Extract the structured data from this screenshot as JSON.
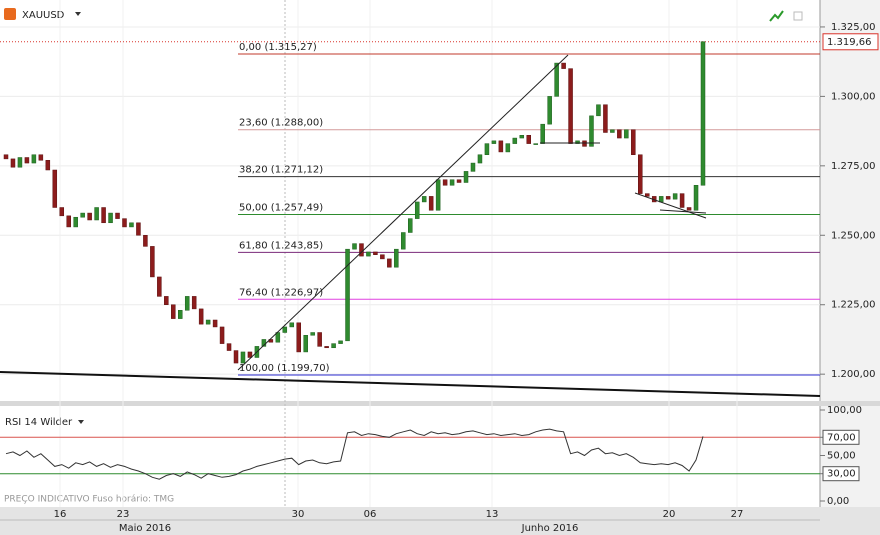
{
  "chart_data": [
    {
      "type": "candlestick",
      "title": "XAUUSD",
      "up_color": "#2f8a2f",
      "down_color": "#8c1c1c",
      "ylim": [
        1.1907,
        1.3347
      ],
      "yticks": [
        {
          "value": 1.325,
          "label": "1.325,00"
        },
        {
          "value": 1.3,
          "label": "1.300,00"
        },
        {
          "value": 1.275,
          "label": "1.275,00"
        },
        {
          "value": 1.25,
          "label": "1.250,00"
        },
        {
          "value": 1.225,
          "label": "1.225,00"
        },
        {
          "value": 1.2,
          "label": "1.200,00"
        }
      ],
      "last_price": {
        "value": 1.31966,
        "label": "1.319,66",
        "color": "#d9342b"
      },
      "fib_levels": [
        {
          "label": "0,00 (1.315,27)",
          "value": 1.31527,
          "color": "#c0392b"
        },
        {
          "label": "23,60 (1.288,00)",
          "value": 1.288,
          "color": "#d49a9a"
        },
        {
          "label": "38,20 (1.271,12)",
          "value": 1.27112,
          "color": "#333333"
        },
        {
          "label": "50,00 (1.257,49)",
          "value": 1.25749,
          "color": "#2e8b2e"
        },
        {
          "label": "61,80 (1.243,85)",
          "value": 1.24385,
          "color": "#7a2a7a"
        },
        {
          "label": "76,40 (1.226,97)",
          "value": 1.22697,
          "color": "#e040e0"
        },
        {
          "label": "100,00 (1.199,70)",
          "value": 1.1997,
          "color": "#2b2bd0"
        }
      ],
      "x_labels": [
        "16",
        "23",
        "30",
        "06",
        "13",
        "20",
        "27"
      ],
      "months": [
        "Maio 2016",
        "Junho 2016"
      ],
      "open": [
        1.279,
        1.2775,
        1.2745,
        1.278,
        1.276,
        1.279,
        1.277,
        1.2735,
        1.26,
        1.257,
        1.253,
        1.2565,
        1.258,
        1.2555,
        1.26,
        1.2545,
        1.258,
        1.256,
        1.253,
        1.2545,
        1.25,
        1.246,
        1.235,
        1.228,
        1.225,
        1.22,
        1.223,
        1.228,
        1.2235,
        1.218,
        1.2195,
        1.217,
        1.211,
        1.2085,
        1.204,
        1.208,
        1.206,
        1.21,
        1.2125,
        1.2115,
        1.215,
        1.217,
        1.2185,
        1.208,
        1.214,
        1.215,
        1.21,
        1.2095,
        1.211,
        1.212,
        1.245,
        1.247,
        1.2425,
        1.244,
        1.243,
        1.2415,
        1.2385,
        1.245,
        1.251,
        1.256,
        1.262,
        1.264,
        1.259,
        1.27,
        1.268,
        1.27,
        1.269,
        1.273,
        1.276,
        1.279,
        1.283,
        1.284,
        1.28,
        1.283,
        1.285,
        1.286,
        1.283,
        1.283,
        1.29,
        1.3,
        1.312,
        1.31,
        1.283,
        1.284,
        1.282,
        1.293,
        1.297,
        1.287,
        1.288,
        1.285,
        1.288,
        1.279,
        1.265,
        1.264,
        1.262,
        1.264,
        1.263,
        1.265,
        1.26,
        1.259,
        1.268
      ],
      "close": [
        1.2775,
        1.2745,
        1.278,
        1.276,
        1.279,
        1.277,
        1.2735,
        1.26,
        1.257,
        1.253,
        1.2565,
        1.258,
        1.2555,
        1.26,
        1.2545,
        1.258,
        1.256,
        1.253,
        1.2545,
        1.25,
        1.246,
        1.235,
        1.228,
        1.225,
        1.22,
        1.223,
        1.228,
        1.2235,
        1.218,
        1.2195,
        1.217,
        1.211,
        1.2085,
        1.204,
        1.208,
        1.206,
        1.21,
        1.2125,
        1.2115,
        1.215,
        1.217,
        1.2185,
        1.208,
        1.214,
        1.215,
        1.21,
        1.2095,
        1.211,
        1.212,
        1.245,
        1.247,
        1.2425,
        1.244,
        1.243,
        1.2415,
        1.2385,
        1.245,
        1.251,
        1.256,
        1.262,
        1.264,
        1.259,
        1.27,
        1.268,
        1.27,
        1.269,
        1.273,
        1.276,
        1.279,
        1.283,
        1.284,
        1.28,
        1.283,
        1.285,
        1.286,
        1.283,
        1.283,
        1.29,
        1.3,
        1.312,
        1.31,
        1.283,
        1.284,
        1.282,
        1.293,
        1.297,
        1.287,
        1.288,
        1.285,
        1.288,
        1.279,
        1.265,
        1.264,
        1.262,
        1.264,
        1.263,
        1.265,
        1.26,
        1.259,
        1.268,
        1.3197
      ]
    },
    {
      "type": "line",
      "title": "RSI 14 Wilder",
      "color": "#333333",
      "ylim": [
        -6.6,
        105.5
      ],
      "yticks": [
        {
          "value": 100,
          "label": "100,00"
        },
        {
          "value": 70,
          "label": "70,00"
        },
        {
          "value": 50,
          "label": "50,00"
        },
        {
          "value": 30,
          "label": "30,00"
        },
        {
          "value": 0,
          "label": "0,00"
        }
      ],
      "levels": [
        {
          "value": 70,
          "color": "#d9534f"
        },
        {
          "value": 30,
          "color": "#2e8b2e"
        }
      ],
      "footer": "PREÇO INDICATIVO   Fuso horário: TMG",
      "values": [
        52,
        54,
        50,
        55,
        48,
        52,
        45,
        38,
        40,
        36,
        42,
        40,
        43,
        38,
        41,
        37,
        40,
        38,
        35,
        33,
        30,
        26,
        24,
        28,
        30,
        27,
        32,
        29,
        25,
        30,
        28,
        26,
        27,
        29,
        33,
        35,
        38,
        40,
        42,
        44,
        46,
        47,
        40,
        44,
        45,
        42,
        41,
        43,
        44,
        75,
        76,
        72,
        74,
        73,
        71,
        70,
        74,
        76,
        78,
        74,
        72,
        76,
        74,
        75,
        73,
        74,
        76,
        77,
        75,
        73,
        74,
        72,
        73,
        74,
        72,
        73,
        76,
        78,
        79,
        77,
        76,
        52,
        54,
        50,
        56,
        58,
        52,
        53,
        50,
        52,
        48,
        42,
        41,
        40,
        41,
        40,
        42,
        39,
        33,
        45,
        71
      ]
    }
  ]
}
